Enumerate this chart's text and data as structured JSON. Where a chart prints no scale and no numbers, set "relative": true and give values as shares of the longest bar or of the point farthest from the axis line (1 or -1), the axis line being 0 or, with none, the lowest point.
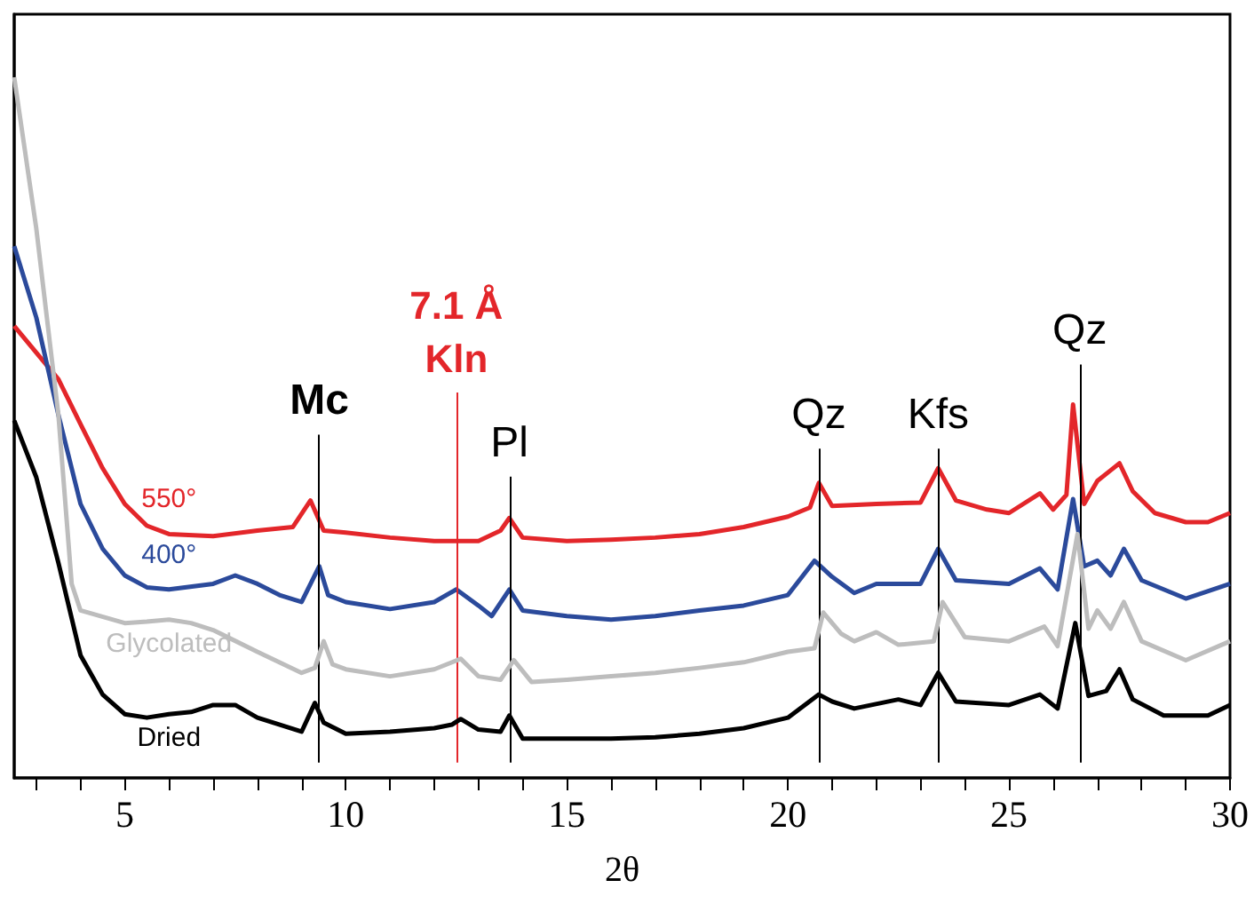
{
  "chart_data": {
    "type": "line",
    "relative": true,
    "xlabel": "2θ",
    "xlim": [
      2.5,
      30
    ],
    "xticks": [
      {
        "value": 3,
        "label": null
      },
      {
        "value": 4,
        "label": null
      },
      5,
      {
        "value": 6,
        "label": null
      },
      {
        "value": 7,
        "label": null
      },
      {
        "value": 8,
        "label": null
      },
      {
        "value": 9,
        "label": null
      },
      10,
      {
        "value": 11,
        "label": null
      },
      {
        "value": 12,
        "label": null
      },
      {
        "value": 13,
        "label": null
      },
      {
        "value": 14,
        "label": null
      },
      15,
      {
        "value": 16,
        "label": null
      },
      {
        "value": 17,
        "label": null
      },
      {
        "value": 18,
        "label": null
      },
      {
        "value": 19,
        "label": null
      },
      20,
      {
        "value": 21,
        "label": null
      },
      {
        "value": 22,
        "label": null
      },
      {
        "value": 23,
        "label": null
      },
      {
        "value": 24,
        "label": null
      },
      25,
      {
        "value": 26,
        "label": null
      },
      {
        "value": 27,
        "label": null
      },
      {
        "value": 28,
        "label": null
      },
      {
        "value": 29,
        "label": null
      },
      30
    ],
    "tick_labels": "x",
    "series": [
      {
        "name": "550°",
        "color": "#e3262a",
        "x": [
          2.5,
          3,
          3.5,
          4,
          4.5,
          5,
          5.5,
          6,
          7,
          8,
          8.8,
          9.2,
          9.5,
          10,
          11,
          12,
          13,
          13.5,
          13.7,
          14,
          15,
          16,
          17,
          18,
          19,
          20,
          20.5,
          20.7,
          21,
          22,
          23,
          23.4,
          23.8,
          24.5,
          25,
          25.7,
          26,
          26.3,
          26.45,
          26.7,
          27,
          27.3,
          27.5,
          27.8,
          28.3,
          29,
          29.5,
          30
        ],
        "values": [
          0.645,
          0.607,
          0.569,
          0.505,
          0.442,
          0.391,
          0.36,
          0.348,
          0.345,
          0.353,
          0.358,
          0.396,
          0.353,
          0.35,
          0.343,
          0.338,
          0.338,
          0.353,
          0.371,
          0.343,
          0.338,
          0.34,
          0.343,
          0.348,
          0.358,
          0.373,
          0.386,
          0.421,
          0.388,
          0.391,
          0.393,
          0.442,
          0.396,
          0.383,
          0.378,
          0.406,
          0.383,
          0.404,
          0.533,
          0.391,
          0.424,
          0.439,
          0.449,
          0.409,
          0.378,
          0.365,
          0.365,
          0.378
        ]
      },
      {
        "name": "400°",
        "color": "#2b4a9b",
        "x": [
          2.5,
          3,
          3.5,
          4,
          4.5,
          5,
          5.5,
          6,
          7,
          7.5,
          8,
          8.5,
          9,
          9.4,
          9.6,
          10,
          11,
          12,
          12.5,
          13,
          13.3,
          13.7,
          14,
          15,
          16,
          17,
          18,
          19,
          20,
          20.6,
          21,
          21.5,
          22,
          23,
          23.4,
          23.8,
          25,
          25.7,
          26.1,
          26.45,
          26.7,
          27,
          27.3,
          27.6,
          28,
          29,
          30
        ],
        "values": [
          0.759,
          0.657,
          0.518,
          0.391,
          0.327,
          0.289,
          0.272,
          0.269,
          0.277,
          0.289,
          0.277,
          0.261,
          0.251,
          0.302,
          0.261,
          0.251,
          0.241,
          0.251,
          0.269,
          0.246,
          0.231,
          0.269,
          0.239,
          0.231,
          0.226,
          0.231,
          0.239,
          0.246,
          0.261,
          0.31,
          0.287,
          0.264,
          0.277,
          0.277,
          0.327,
          0.282,
          0.277,
          0.299,
          0.269,
          0.398,
          0.302,
          0.31,
          0.289,
          0.327,
          0.282,
          0.256,
          0.277
        ]
      },
      {
        "name": "Glycolated",
        "color": "#bdbdbd",
        "x": [
          2.5,
          3,
          3.5,
          3.8,
          4,
          5,
          5.5,
          6,
          6.5,
          7,
          8,
          9,
          9.3,
          9.5,
          9.7,
          10,
          11,
          12,
          12.6,
          13,
          13.5,
          13.8,
          14.2,
          15,
          16,
          17,
          18,
          19,
          20,
          20.6,
          20.8,
          21.2,
          21.5,
          22,
          22.5,
          23.3,
          23.5,
          24,
          25,
          25.8,
          26.1,
          26.55,
          26.8,
          27,
          27.3,
          27.6,
          28,
          29,
          30
        ],
        "values": [
          1.0,
          0.784,
          0.518,
          0.277,
          0.239,
          0.221,
          0.223,
          0.226,
          0.221,
          0.211,
          0.18,
          0.15,
          0.157,
          0.195,
          0.162,
          0.155,
          0.145,
          0.155,
          0.17,
          0.145,
          0.14,
          0.168,
          0.137,
          0.14,
          0.145,
          0.15,
          0.157,
          0.165,
          0.18,
          0.185,
          0.236,
          0.206,
          0.195,
          0.208,
          0.19,
          0.195,
          0.251,
          0.201,
          0.195,
          0.216,
          0.188,
          0.348,
          0.213,
          0.239,
          0.213,
          0.251,
          0.195,
          0.168,
          0.195
        ]
      },
      {
        "name": "Dried",
        "color": "#000000",
        "x": [
          2.5,
          3,
          3.5,
          4,
          4.5,
          5,
          5.5,
          6,
          6.5,
          7,
          7.5,
          8,
          9,
          9.3,
          9.5,
          10,
          11,
          12,
          12.4,
          12.6,
          13,
          13.5,
          13.7,
          14,
          15,
          16,
          17,
          18,
          19,
          20,
          20.7,
          21,
          21.5,
          22.5,
          23,
          23.4,
          23.8,
          25,
          25.7,
          26.1,
          26.5,
          26.8,
          27.2,
          27.5,
          27.8,
          28.5,
          29.5,
          30
        ],
        "values": [
          0.51,
          0.429,
          0.307,
          0.175,
          0.119,
          0.091,
          0.086,
          0.091,
          0.094,
          0.104,
          0.104,
          0.086,
          0.066,
          0.107,
          0.079,
          0.063,
          0.066,
          0.071,
          0.076,
          0.084,
          0.069,
          0.066,
          0.089,
          0.056,
          0.056,
          0.056,
          0.058,
          0.063,
          0.071,
          0.086,
          0.119,
          0.109,
          0.099,
          0.112,
          0.104,
          0.15,
          0.109,
          0.104,
          0.119,
          0.099,
          0.221,
          0.117,
          0.124,
          0.155,
          0.112,
          0.089,
          0.089,
          0.104
        ]
      }
    ],
    "ref_lines": [
      {
        "axis": "x",
        "value": 9.4,
        "label": "Mc"
      },
      {
        "axis": "x",
        "value": 12.5,
        "label": "7.1 Å\nKln",
        "color": "#e3262a"
      },
      {
        "axis": "x",
        "value": 13.7,
        "label": "Pl"
      },
      {
        "axis": "x",
        "value": 20.7,
        "label": "Qz"
      },
      {
        "axis": "x",
        "value": 23.4,
        "label": "Kfs"
      },
      {
        "axis": "x",
        "value": 26.6,
        "label": "Qz"
      }
    ]
  }
}
